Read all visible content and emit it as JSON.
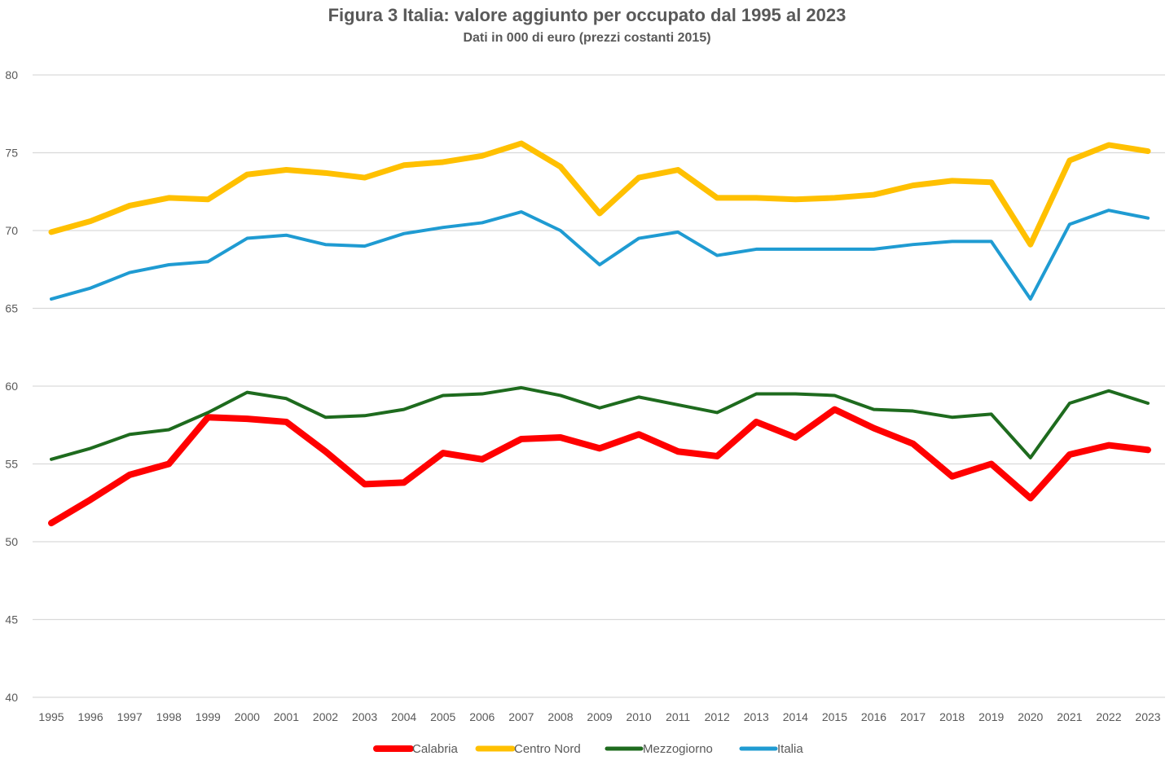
{
  "chart_data": {
    "type": "line",
    "title": "Figura 3 Italia: valore aggiunto per occupato dal 1995 al 2023",
    "subtitle": "Dati in 000 di euro (prezzi costanti 2015)",
    "xlabel": "",
    "ylabel": "",
    "ylim": [
      40,
      80
    ],
    "yticks": [
      40,
      45,
      50,
      55,
      60,
      65,
      70,
      75,
      80
    ],
    "grid": true,
    "legend_position": "bottom",
    "categories": [
      "1995",
      "1996",
      "1997",
      "1998",
      "1999",
      "2000",
      "2001",
      "2002",
      "2003",
      "2004",
      "2005",
      "2006",
      "2007",
      "2008",
      "2009",
      "2010",
      "2011",
      "2012",
      "2013",
      "2014",
      "2015",
      "2016",
      "2017",
      "2018",
      "2019",
      "2020",
      "2021",
      "2022",
      "2023"
    ],
    "series": [
      {
        "name": "Calabria",
        "color": "#FF0000",
        "width": 8,
        "values": [
          51.2,
          52.7,
          54.3,
          55.0,
          58.0,
          57.9,
          57.7,
          55.8,
          53.7,
          53.8,
          55.7,
          55.3,
          56.6,
          56.7,
          56.0,
          56.9,
          55.8,
          55.5,
          57.7,
          56.7,
          58.5,
          57.3,
          56.3,
          54.2,
          55.0,
          52.8,
          55.6,
          56.2,
          55.9
        ]
      },
      {
        "name": "Centro Nord",
        "color": "#FFC000",
        "width": 7,
        "values": [
          69.9,
          70.6,
          71.6,
          72.1,
          72.0,
          73.6,
          73.9,
          73.7,
          73.4,
          74.2,
          74.4,
          74.8,
          75.6,
          74.1,
          71.1,
          73.4,
          73.9,
          72.1,
          72.1,
          72.0,
          72.1,
          72.3,
          72.9,
          73.2,
          73.1,
          69.1,
          74.5,
          75.5,
          75.1
        ]
      },
      {
        "name": "Mezzogiorno",
        "color": "#1E6B1E",
        "width": 4,
        "values": [
          55.3,
          56.0,
          56.9,
          57.2,
          58.3,
          59.6,
          59.2,
          58.0,
          58.1,
          58.5,
          59.4,
          59.5,
          59.9,
          59.4,
          58.6,
          59.3,
          58.8,
          58.3,
          59.5,
          59.5,
          59.4,
          58.5,
          58.4,
          58.0,
          58.2,
          55.4,
          58.9,
          59.7,
          58.9
        ]
      },
      {
        "name": "Italia",
        "color": "#1F9BD2",
        "width": 4,
        "values": [
          65.6,
          66.3,
          67.3,
          67.8,
          68.0,
          69.5,
          69.7,
          69.1,
          69.0,
          69.8,
          70.2,
          70.5,
          71.2,
          70.0,
          67.8,
          69.5,
          69.9,
          68.4,
          68.8,
          68.8,
          68.8,
          68.8,
          69.1,
          69.3,
          69.3,
          65.6,
          70.4,
          71.3,
          70.8
        ]
      }
    ]
  }
}
